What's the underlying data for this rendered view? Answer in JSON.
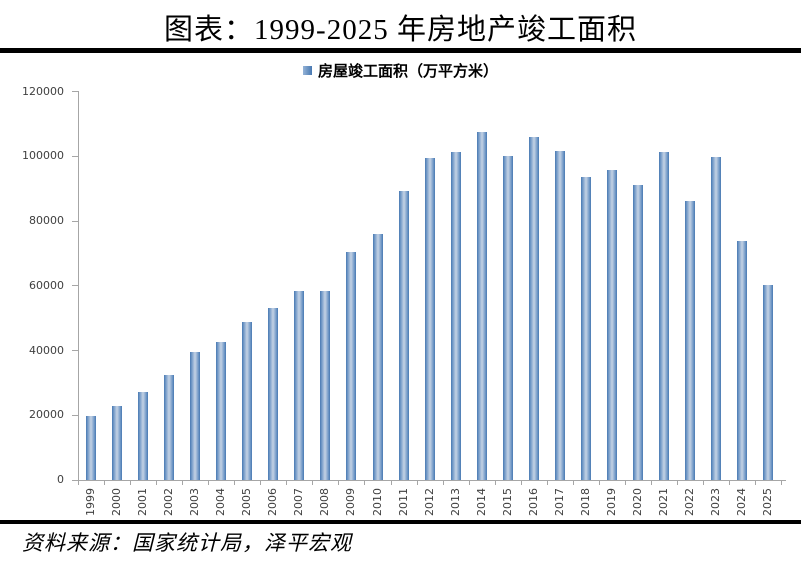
{
  "page": {
    "title": "图表：1999-2025 年房地产竣工面积",
    "source": "资料来源：国家统计局，泽平宏观"
  },
  "legend": {
    "label": "房屋竣工面积（万平方米）"
  },
  "chart_data": {
    "type": "bar",
    "title": "图表：1999-2025 年房地产竣工面积",
    "legend": [
      "房屋竣工面积（万平方米）"
    ],
    "legend_position": "top-center",
    "unit": "万平方米",
    "categories": [
      "1999",
      "2000",
      "2001",
      "2002",
      "2003",
      "2004",
      "2005",
      "2006",
      "2007",
      "2008",
      "2009",
      "2010",
      "2011",
      "2012",
      "2013",
      "2014",
      "2015",
      "2016",
      "2017",
      "2018",
      "2019",
      "2020",
      "2021",
      "2022",
      "2023",
      "2024",
      "2025"
    ],
    "values": [
      19700,
      23000,
      27300,
      32500,
      39600,
      42500,
      48800,
      53000,
      58300,
      58500,
      70300,
      76000,
      89300,
      99400,
      101400,
      107500,
      100000,
      106100,
      101500,
      93600,
      95900,
      91200,
      101400,
      86200,
      99800,
      73700,
      60400
    ],
    "xlabel": "",
    "ylabel": "",
    "ylim": [
      0,
      120000
    ],
    "yticks": [
      0,
      20000,
      40000,
      60000,
      80000,
      100000,
      120000
    ],
    "grid": false,
    "xtick_rotation": -90
  },
  "colors": {
    "bar_edge": "#4879b2",
    "bar_mid": "#bccde2",
    "axis": "#a6a6a6",
    "tick_text": "#3f3f3f",
    "divider": "#000000"
  }
}
